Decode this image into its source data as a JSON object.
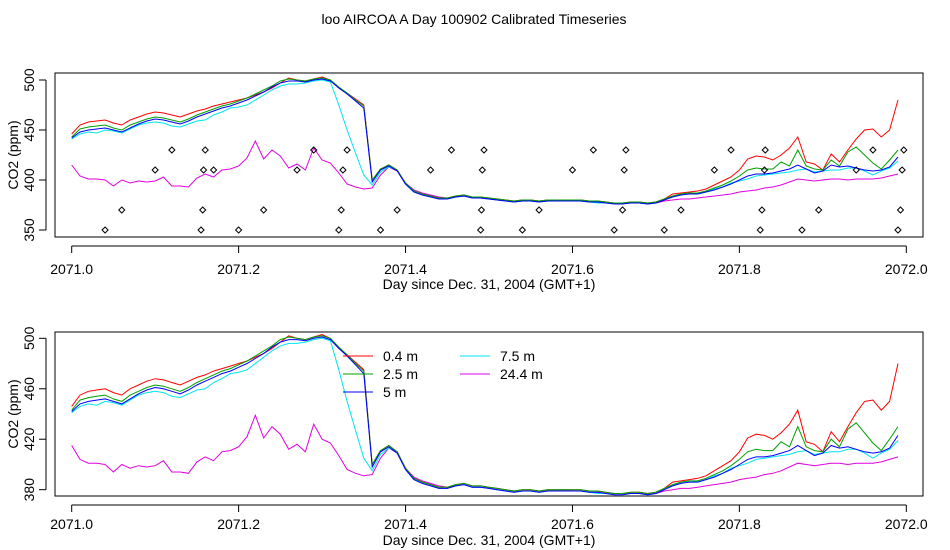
{
  "title": "loo AIRCOA A  Day 100902  Calibrated Timeseries",
  "colors": {
    "0.4 m": "#ff0000",
    "2.5 m": "#00a000",
    "5 m": "#0000ff",
    "7.5 m": "#00e5ee",
    "24.4 m": "#e000e0",
    "flags": "#000000"
  },
  "chart_data": [
    {
      "type": "line",
      "xlabel": "Day since Dec. 31, 2004 (GMT+1)",
      "ylabel": "CO2 (ppm)",
      "xlim": [
        2070.98,
        2072.02
      ],
      "ylim": [
        343,
        507
      ],
      "xticks": [
        2071.0,
        2071.2,
        2071.4,
        2071.6,
        2071.8,
        2072.0
      ],
      "xtick_labels": [
        "2071.0",
        "2071.2",
        "2071.4",
        "2071.6",
        "2071.8",
        "2072.0"
      ],
      "yticks": [
        350,
        400,
        450,
        500
      ],
      "ytick_labels": [
        "350",
        "400",
        "450",
        "500"
      ],
      "legend": null,
      "x": [
        2071.0,
        2071.01,
        2071.02,
        2071.03,
        2071.04,
        2071.05,
        2071.06,
        2071.07,
        2071.08,
        2071.09,
        2071.1,
        2071.11,
        2071.12,
        2071.13,
        2071.14,
        2071.15,
        2071.16,
        2071.17,
        2071.18,
        2071.19,
        2071.2,
        2071.21,
        2071.22,
        2071.23,
        2071.24,
        2071.25,
        2071.26,
        2071.27,
        2071.28,
        2071.29,
        2071.3,
        2071.31,
        2071.32,
        2071.33,
        2071.34,
        2071.35,
        2071.36,
        2071.37,
        2071.38,
        2071.39,
        2071.4,
        2071.41,
        2071.42,
        2071.43,
        2071.44,
        2071.45,
        2071.46,
        2071.47,
        2071.48,
        2071.49,
        2071.5,
        2071.51,
        2071.52,
        2071.53,
        2071.54,
        2071.55,
        2071.56,
        2071.57,
        2071.58,
        2071.59,
        2071.6,
        2071.61,
        2071.62,
        2071.63,
        2071.64,
        2071.65,
        2071.66,
        2071.67,
        2071.68,
        2071.69,
        2071.7,
        2071.71,
        2071.72,
        2071.73,
        2071.74,
        2071.75,
        2071.76,
        2071.77,
        2071.78,
        2071.79,
        2071.8,
        2071.81,
        2071.82,
        2071.83,
        2071.84,
        2071.85,
        2071.86,
        2071.87,
        2071.88,
        2071.89,
        2071.9,
        2071.91,
        2071.92,
        2071.93,
        2071.94,
        2071.95,
        2071.96,
        2071.97,
        2071.98,
        2071.99
      ],
      "series": [
        {
          "name": "0.4 m",
          "values": [
            446,
            455,
            458,
            459,
            460,
            457,
            455,
            460,
            463,
            466,
            468,
            467,
            465,
            463,
            466,
            469,
            471,
            474,
            476,
            478,
            480,
            482,
            485,
            488,
            492,
            497,
            502,
            500,
            499,
            501,
            503,
            500,
            492,
            487,
            481,
            475,
            400,
            411,
            415,
            410,
            397,
            389,
            386,
            384,
            382,
            382,
            384,
            385,
            383,
            383,
            382,
            381,
            380,
            379,
            380,
            380,
            379,
            380,
            380,
            380,
            380,
            380,
            379,
            379,
            378,
            377,
            377,
            378,
            378,
            377,
            378,
            381,
            386,
            387,
            388,
            389,
            391,
            395,
            399,
            403,
            410,
            421,
            424,
            423,
            420,
            425,
            432,
            443,
            418,
            416,
            410,
            426,
            418,
            430,
            441,
            450,
            451,
            443,
            450,
            480
          ]
        },
        {
          "name": "2.5 m",
          "values": [
            443,
            451,
            453,
            454,
            455,
            452,
            450,
            455,
            458,
            461,
            463,
            462,
            460,
            458,
            461,
            465,
            468,
            471,
            474,
            476,
            479,
            482,
            486,
            490,
            494,
            499,
            501,
            500,
            499,
            501,
            502,
            500,
            493,
            487,
            480,
            474,
            400,
            411,
            415,
            410,
            397,
            389,
            386,
            384,
            382,
            382,
            384,
            385,
            383,
            383,
            382,
            381,
            380,
            379,
            380,
            380,
            379,
            380,
            380,
            380,
            380,
            380,
            379,
            379,
            378,
            377,
            377,
            378,
            378,
            377,
            378,
            381,
            384,
            386,
            387,
            387,
            389,
            392,
            395,
            399,
            404,
            410,
            412,
            411,
            411,
            418,
            414,
            430,
            414,
            411,
            410,
            420,
            414,
            428,
            433,
            425,
            417,
            411,
            420,
            430
          ]
        },
        {
          "name": "5 m",
          "values": [
            442,
            448,
            450,
            451,
            452,
            450,
            448,
            452,
            456,
            459,
            461,
            460,
            458,
            456,
            459,
            463,
            466,
            469,
            472,
            474,
            477,
            480,
            484,
            488,
            493,
            497,
            499,
            499,
            498,
            500,
            501,
            499,
            492,
            486,
            479,
            472,
            398,
            410,
            414,
            409,
            396,
            388,
            385,
            383,
            381,
            381,
            383,
            384,
            382,
            382,
            381,
            380,
            379,
            378,
            379,
            379,
            378,
            379,
            379,
            379,
            379,
            379,
            378,
            378,
            377,
            376,
            376,
            377,
            377,
            376,
            377,
            380,
            383,
            385,
            386,
            386,
            388,
            390,
            393,
            396,
            400,
            404,
            406,
            406,
            407,
            409,
            411,
            415,
            411,
            407,
            409,
            415,
            413,
            414,
            412,
            410,
            409,
            410,
            413,
            423
          ]
        },
        {
          "name": "7.5 m",
          "values": [
            441,
            446,
            448,
            447,
            450,
            449,
            447,
            451,
            455,
            457,
            458,
            457,
            454,
            453,
            456,
            459,
            460,
            465,
            468,
            472,
            473,
            475,
            480,
            485,
            490,
            494,
            496,
            496,
            497,
            499,
            500,
            498,
            475,
            450,
            427,
            405,
            395,
            408,
            413,
            410,
            396,
            388,
            386,
            384,
            381,
            381,
            383,
            384,
            382,
            382,
            381,
            380,
            379,
            378,
            379,
            379,
            378,
            379,
            380,
            380,
            379,
            379,
            378,
            377,
            377,
            377,
            377,
            377,
            377,
            376,
            377,
            381,
            383,
            386,
            387,
            386,
            388,
            391,
            393,
            397,
            399,
            401,
            404,
            405,
            406,
            407,
            408,
            410,
            411,
            408,
            409,
            410,
            410,
            412,
            412,
            409,
            405,
            409,
            412,
            419
          ]
        },
        {
          "name": "24.4 m",
          "values": [
            415,
            404,
            401,
            401,
            400,
            394,
            400,
            397,
            399,
            398,
            399,
            403,
            394,
            394,
            393,
            402,
            406,
            403,
            410,
            411,
            414,
            422,
            439,
            421,
            430,
            424,
            412,
            416,
            410,
            432,
            420,
            417,
            407,
            396,
            393,
            391,
            392,
            405,
            413,
            409,
            397,
            390,
            387,
            385,
            383,
            382,
            383,
            384,
            382,
            382,
            381,
            380,
            379,
            378,
            379,
            379,
            378,
            379,
            379,
            379,
            379,
            379,
            378,
            378,
            377,
            377,
            377,
            377,
            377,
            377,
            377,
            379,
            380,
            381,
            381,
            382,
            383,
            384,
            385,
            386,
            388,
            389,
            390,
            392,
            393,
            395,
            398,
            401,
            400,
            399,
            400,
            401,
            401,
            400,
            401,
            401,
            401,
            402,
            404,
            406
          ]
        }
      ],
      "flag_points": {
        "x": [
          2071.04,
          2071.06,
          2071.1,
          2071.12,
          2071.155,
          2071.157,
          2071.158,
          2071.16,
          2071.17,
          2071.2,
          2071.23,
          2071.27,
          2071.29,
          2071.32,
          2071.323,
          2071.325,
          2071.33,
          2071.37,
          2071.39,
          2071.43,
          2071.455,
          2071.49,
          2071.491,
          2071.492,
          2071.494,
          2071.54,
          2071.56,
          2071.6,
          2071.625,
          2071.65,
          2071.66,
          2071.662,
          2071.664,
          2071.71,
          2071.73,
          2071.77,
          2071.79,
          2071.825,
          2071.827,
          2071.83,
          2071.831,
          2071.875,
          2071.895,
          2071.94,
          2071.96,
          2071.99,
          2071.993,
          2071.995,
          2071.997
        ],
        "y": [
          350,
          370,
          410,
          430,
          350,
          370,
          410,
          430,
          410,
          350,
          370,
          410,
          430,
          350,
          370,
          410,
          430,
          350,
          370,
          410,
          430,
          350,
          370,
          410,
          430,
          350,
          370,
          410,
          430,
          350,
          370,
          410,
          430,
          350,
          370,
          410,
          430,
          350,
          370,
          410,
          430,
          350,
          370,
          410,
          430,
          350,
          370,
          410,
          430
        ]
      }
    },
    {
      "type": "line",
      "xlabel": "Day since Dec. 31, 2004 (GMT+1)",
      "ylabel": "CO2 (ppm)",
      "xlim": [
        2070.98,
        2072.02
      ],
      "ylim": [
        375,
        505
      ],
      "xticks": [
        2071.0,
        2071.2,
        2071.4,
        2071.6,
        2071.8,
        2072.0
      ],
      "xtick_labels": [
        "2071.0",
        "2071.2",
        "2071.4",
        "2071.6",
        "2071.8",
        "2072.0"
      ],
      "yticks": [
        380,
        420,
        460,
        500
      ],
      "ytick_labels": [
        "380",
        "420",
        "460",
        "500"
      ],
      "legend": {
        "placement": "top-center",
        "entries": [
          "0.4 m",
          "2.5 m",
          "5 m",
          "7.5 m",
          "24.4 m"
        ]
      },
      "same_series_as_panel": 1
    }
  ]
}
